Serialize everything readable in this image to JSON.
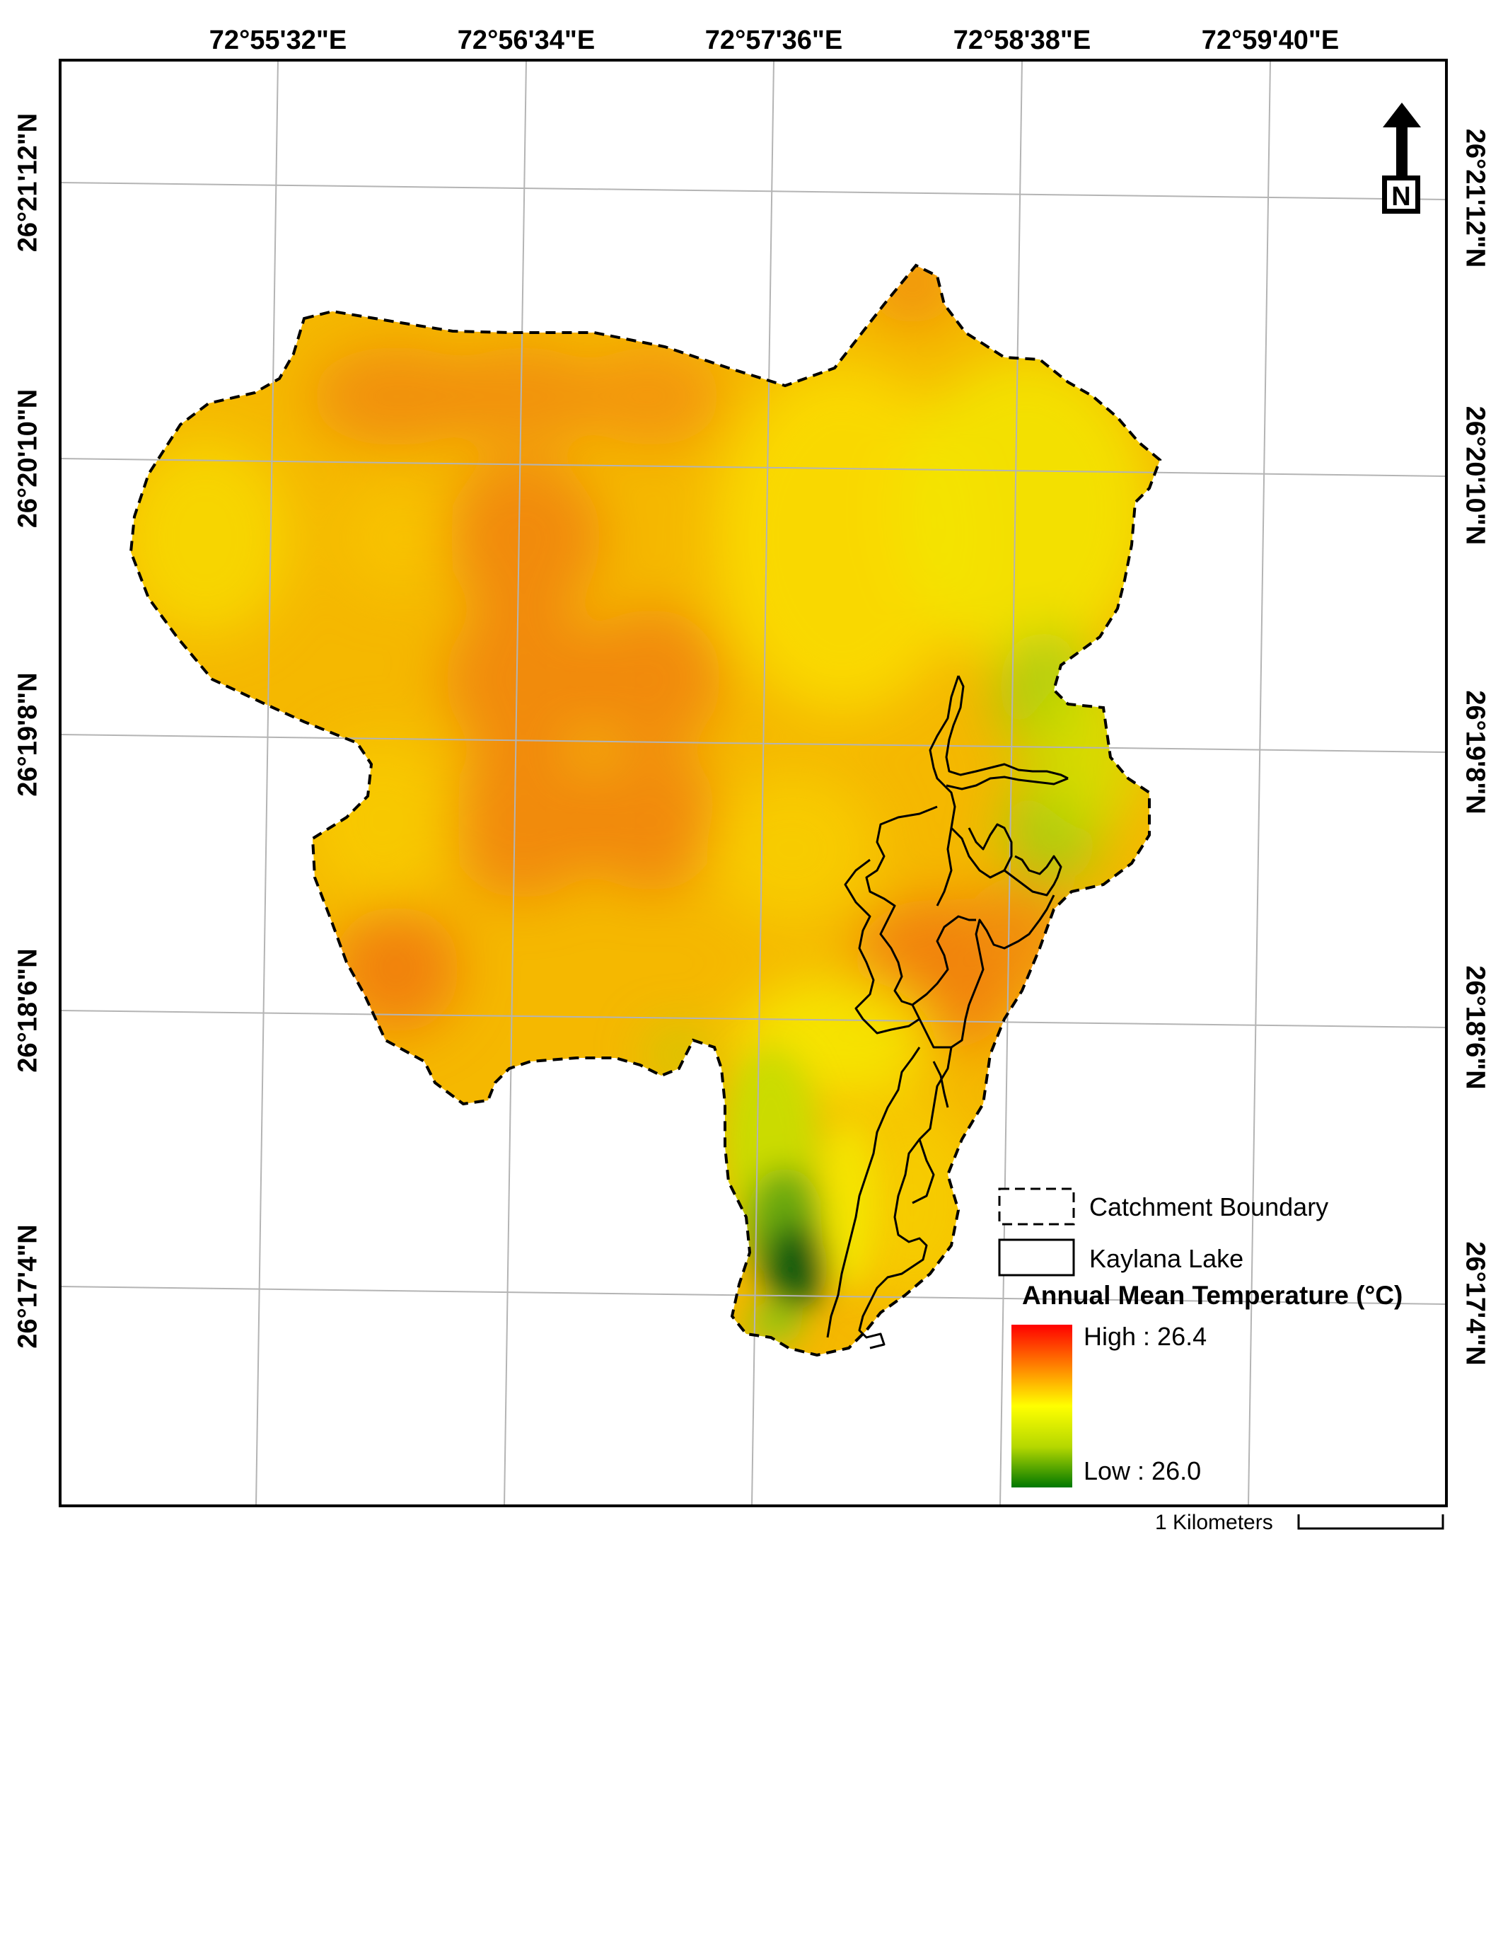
{
  "map": {
    "longitude_labels": [
      "72°55'32\"E",
      "72°56'34\"E",
      "72°57'36\"E",
      "72°58'38\"E",
      "72°59'40\"E"
    ],
    "latitude_labels": [
      "26°21'12\"N",
      "26°20'10\"N",
      "26°19'8\"N",
      "26°18'6\"N",
      "26°17'4\"N"
    ],
    "north_arrow_letter": "N",
    "legend": {
      "catchment_label": "Catchment Boundary",
      "lake_label": "Kaylana Lake",
      "title": "Annual Mean Temperature (°C)",
      "high_label": "High : 26.4",
      "low_label": "Low : 26.0",
      "high_value": 26.4,
      "low_value": 26.0,
      "ramp_colors": [
        "#ff0000",
        "#ff7f00",
        "#ffff00",
        "#b5d800",
        "#007800"
      ]
    },
    "scale_bar_label": "1 Kilometers",
    "colors": {
      "warm_base": "#f7b100",
      "hot_spot": "#f07c0a",
      "cool_spot": "#9cc80c",
      "coldest": "#0a5a0a",
      "grid_line": "#b4b4b4"
    }
  }
}
